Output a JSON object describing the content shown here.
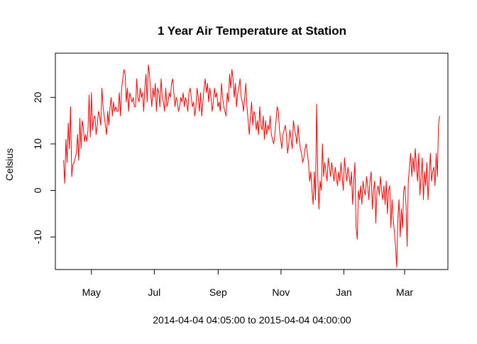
{
  "chart_data": {
    "type": "line",
    "title": "1 Year Air Temperature at Station",
    "xlabel": "2014-04-04 04:05:00 to 2015-04-04 04:00:00",
    "ylabel": "Celsius",
    "x_start": "2014-04-04",
    "x_end": "2015-04-04",
    "xlim": [
      "2014-03-27",
      "2015-04-12"
    ],
    "ylim": [
      -17,
      29.5
    ],
    "x_ticks": [
      {
        "label": "May",
        "date": "2014-05-01"
      },
      {
        "label": "Jul",
        "date": "2014-07-01"
      },
      {
        "label": "Sep",
        "date": "2014-09-01"
      },
      {
        "label": "Nov",
        "date": "2014-11-01"
      },
      {
        "label": "Jan",
        "date": "2015-01-01"
      },
      {
        "label": "Mar",
        "date": "2015-03-01"
      }
    ],
    "y_ticks": [
      -10,
      0,
      10,
      20
    ],
    "grid": false,
    "series": [
      {
        "color": "#ff0000",
        "values": [
          6.5,
          1.5,
          11,
          6,
          14.5,
          9,
          18,
          3,
          5.5,
          6,
          7,
          8,
          12,
          6.5,
          15.5,
          9,
          15,
          13.5,
          10.5,
          12,
          10.5,
          13,
          20.5,
          11.5,
          21,
          13,
          15.5,
          16,
          12,
          14,
          17,
          16,
          14,
          22,
          18,
          16,
          14,
          12,
          17,
          14,
          18,
          20,
          16,
          19,
          17,
          18,
          17,
          17,
          21,
          16,
          22,
          24,
          26,
          25,
          19,
          22,
          17,
          21,
          20,
          19,
          20,
          18,
          18,
          24,
          20,
          19,
          22,
          20,
          21,
          17,
          22,
          25,
          19,
          27,
          25,
          21,
          18,
          22,
          20,
          23,
          17,
          22,
          21,
          18,
          24,
          20,
          19,
          17,
          22,
          18,
          19,
          21,
          20,
          23,
          24,
          21,
          18,
          20,
          19,
          17,
          18,
          20,
          19,
          21,
          18,
          20,
          19,
          17,
          21,
          22,
          20,
          18,
          19,
          16,
          18,
          22,
          20,
          17,
          21,
          16,
          19,
          22,
          24,
          21,
          23,
          19,
          22,
          20,
          17,
          19,
          22,
          20,
          21,
          18,
          19,
          17,
          23,
          20,
          18,
          17,
          16,
          21,
          19,
          25,
          22,
          26,
          24,
          20,
          23,
          18,
          21,
          22,
          24,
          20,
          19,
          17,
          20,
          23,
          18,
          15,
          12,
          16,
          19,
          14,
          17,
          16,
          13,
          15,
          12,
          18,
          14,
          13,
          16,
          11,
          15,
          12,
          14,
          13,
          16,
          12,
          11,
          10,
          12,
          15,
          18,
          17,
          13,
          11,
          9,
          12,
          13,
          14,
          12,
          8,
          10,
          13,
          11,
          9,
          15,
          13,
          12,
          10,
          14,
          11,
          9,
          8,
          6,
          7,
          9,
          10,
          8,
          6,
          2,
          4,
          0,
          -3,
          4,
          -2,
          18.5,
          3,
          -4,
          2,
          0,
          10,
          3,
          6,
          4,
          2,
          7,
          5,
          3,
          6,
          4,
          2,
          5,
          3,
          1,
          4,
          2,
          6,
          3,
          0,
          7,
          4,
          2,
          5,
          3,
          1,
          4,
          -3,
          2,
          6,
          -8,
          -10.5,
          0,
          -2,
          1,
          -3,
          2,
          0,
          -1,
          3,
          1,
          -2,
          2,
          4,
          -4,
          0,
          2,
          -7,
          0,
          1,
          -1,
          3,
          0,
          -2,
          1,
          -3,
          2,
          -5,
          0,
          1,
          -8,
          -2,
          -6,
          -9,
          -12,
          -16.5,
          -6,
          -2,
          -10,
          -4,
          -8,
          0,
          1,
          -3,
          -12,
          2,
          5,
          8,
          3,
          7,
          4,
          9,
          5,
          2,
          8,
          -1,
          3,
          7,
          -2,
          4,
          1,
          6,
          -2,
          3,
          8,
          2,
          4,
          5,
          1,
          8,
          3,
          14,
          16
        ]
      }
    ]
  }
}
